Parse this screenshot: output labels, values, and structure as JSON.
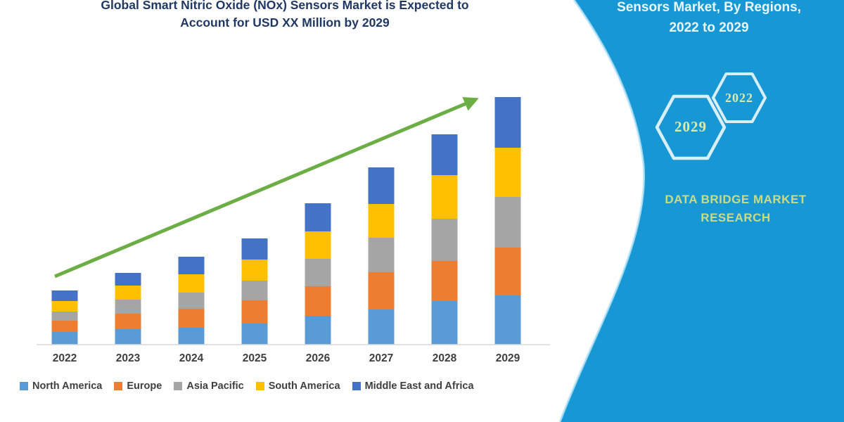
{
  "chart": {
    "title_color": "#1f3864"
  },
  "chart_data": {
    "type": "bar",
    "stacked": true,
    "title": "Global Smart Nitric Oxide (NOx) Sensors Market is Expected to Account for USD XX Million by 2029",
    "title_lines": [
      "Global Smart Nitric Oxide (NOx) Sensors Market is Expected to",
      "Account for USD XX Million by 2029"
    ],
    "xlabel": "",
    "ylabel": "",
    "units": "relative units (no value axis shown in figure)",
    "ylim": [
      0,
      360
    ],
    "grid": false,
    "legend_position": "bottom",
    "categories": [
      "2022",
      "2023",
      "2024",
      "2025",
      "2026",
      "2027",
      "2028",
      "2029"
    ],
    "series": [
      {
        "name": "North America",
        "color": "#5B9BD5",
        "values": [
          18,
          22,
          24,
          30,
          41,
          50,
          62,
          70
        ]
      },
      {
        "name": "Europe",
        "color": "#ED7D31",
        "values": [
          16,
          22,
          27,
          33,
          42,
          53,
          57,
          68
        ]
      },
      {
        "name": "Asia Pacific",
        "color": "#A5A5A5",
        "values": [
          13,
          20,
          23,
          28,
          39,
          49,
          60,
          72
        ]
      },
      {
        "name": "South America",
        "color": "#FFC000",
        "values": [
          15,
          20,
          26,
          30,
          39,
          48,
          62,
          70
        ]
      },
      {
        "name": "Middle East and Africa",
        "color": "#4472C4",
        "values": [
          15,
          18,
          25,
          30,
          40,
          52,
          58,
          72
        ]
      }
    ],
    "totals_estimated": [
      77,
      102,
      125,
      151,
      201,
      252,
      299,
      352
    ],
    "axis_color": "#d9d9d9",
    "label_color": "#3f3f3f",
    "trend_arrow": {
      "color": "#6CAE45",
      "from_year": "2022",
      "to_year": "2029"
    }
  },
  "side_panel": {
    "background": "#1798d5",
    "edge_highlight": "#b9e5f6",
    "heading_lines": [
      "Sensors Market, By Regions,",
      "2022 to 2029"
    ],
    "heading_color": "#eaf7fd",
    "hexagons": [
      {
        "label": "2029"
      },
      {
        "label": "2022"
      }
    ],
    "hexagon_outline_color": "#d8eef8",
    "hexagon_label_color": "#dcebaa",
    "brand_lines": [
      "DATA BRIDGE MARKET",
      "RESEARCH"
    ],
    "brand_color": "#c9db83"
  }
}
